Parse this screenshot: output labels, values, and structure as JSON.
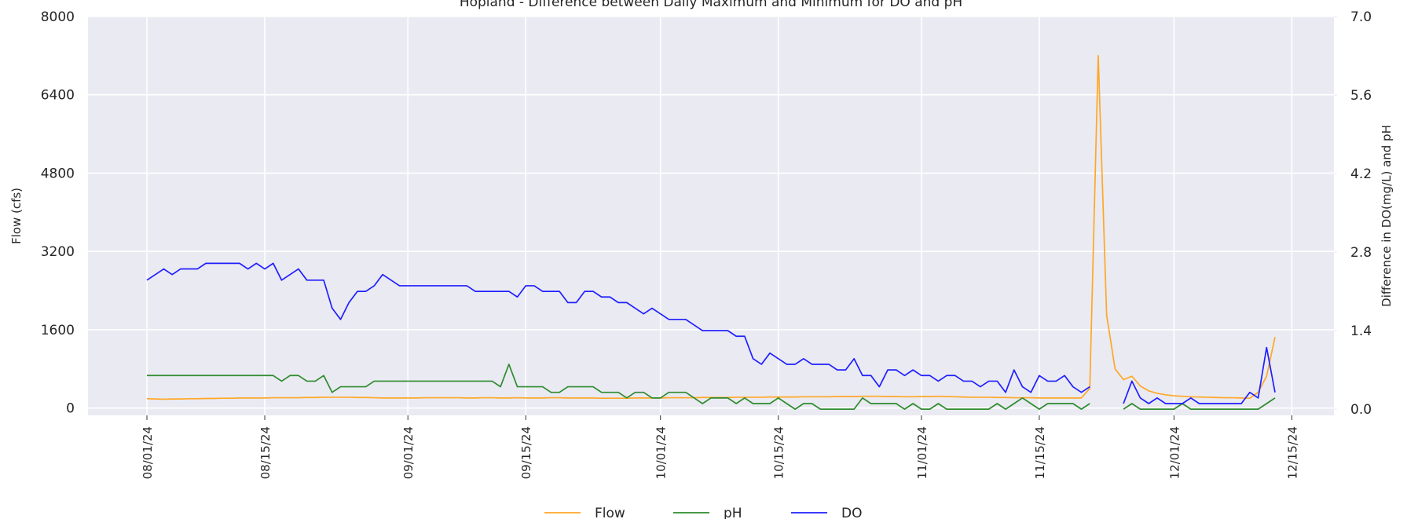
{
  "chart_data": {
    "type": "line",
    "title": "Hopland - Difference between Daily Maximum and Minimum for DO and pH",
    "ylabel": "Flow (cfs)",
    "y2label": "Difference in DO(mg/L) and pH",
    "x": [
      "2024-08-01",
      "2024-08-02",
      "2024-08-03",
      "2024-08-04",
      "2024-08-05",
      "2024-08-06",
      "2024-08-07",
      "2024-08-08",
      "2024-08-09",
      "2024-08-10",
      "2024-08-11",
      "2024-08-12",
      "2024-08-13",
      "2024-08-14",
      "2024-08-15",
      "2024-08-16",
      "2024-08-17",
      "2024-08-18",
      "2024-08-19",
      "2024-08-20",
      "2024-08-21",
      "2024-08-22",
      "2024-08-23",
      "2024-08-24",
      "2024-08-25",
      "2024-08-26",
      "2024-08-27",
      "2024-08-28",
      "2024-08-29",
      "2024-08-30",
      "2024-08-31",
      "2024-09-01",
      "2024-09-02",
      "2024-09-03",
      "2024-09-04",
      "2024-09-05",
      "2024-09-06",
      "2024-09-07",
      "2024-09-08",
      "2024-09-09",
      "2024-09-10",
      "2024-09-11",
      "2024-09-12",
      "2024-09-13",
      "2024-09-14",
      "2024-09-15",
      "2024-09-16",
      "2024-09-17",
      "2024-09-18",
      "2024-09-19",
      "2024-09-20",
      "2024-09-21",
      "2024-09-22",
      "2024-09-23",
      "2024-09-24",
      "2024-09-25",
      "2024-09-26",
      "2024-09-27",
      "2024-09-28",
      "2024-09-29",
      "2024-09-30",
      "2024-10-01",
      "2024-10-02",
      "2024-10-03",
      "2024-10-04",
      "2024-10-05",
      "2024-10-06",
      "2024-10-07",
      "2024-10-08",
      "2024-10-09",
      "2024-10-10",
      "2024-10-11",
      "2024-10-12",
      "2024-10-13",
      "2024-10-14",
      "2024-10-15",
      "2024-10-16",
      "2024-10-17",
      "2024-10-18",
      "2024-10-19",
      "2024-10-20",
      "2024-10-21",
      "2024-10-22",
      "2024-10-23",
      "2024-10-24",
      "2024-10-25",
      "2024-10-26",
      "2024-10-27",
      "2024-10-28",
      "2024-10-29",
      "2024-10-30",
      "2024-10-31",
      "2024-11-01",
      "2024-11-02",
      "2024-11-03",
      "2024-11-04",
      "2024-11-05",
      "2024-11-06",
      "2024-11-07",
      "2024-11-08",
      "2024-11-09",
      "2024-11-10",
      "2024-11-11",
      "2024-11-12",
      "2024-11-13",
      "2024-11-14",
      "2024-11-15",
      "2024-11-16",
      "2024-11-17",
      "2024-11-18",
      "2024-11-19",
      "2024-11-20",
      "2024-11-21",
      "2024-11-22",
      "2024-11-23",
      "2024-11-24",
      "2024-11-25",
      "2024-11-26",
      "2024-11-27",
      "2024-11-28",
      "2024-11-29",
      "2024-11-30",
      "2024-12-01",
      "2024-12-02",
      "2024-12-03",
      "2024-12-04",
      "2024-12-05",
      "2024-12-06",
      "2024-12-07",
      "2024-12-08",
      "2024-12-09",
      "2024-12-10",
      "2024-12-11",
      "2024-12-12",
      "2024-12-13"
    ],
    "series": [
      {
        "name": "Flow",
        "color": "#ffa726",
        "axis": "y",
        "values": [
          190,
          185,
          180,
          185,
          185,
          190,
          190,
          195,
          195,
          200,
          200,
          205,
          205,
          205,
          205,
          210,
          210,
          210,
          210,
          215,
          215,
          220,
          220,
          220,
          220,
          215,
          215,
          210,
          205,
          205,
          205,
          205,
          205,
          210,
          210,
          210,
          210,
          210,
          205,
          205,
          210,
          210,
          205,
          205,
          210,
          205,
          205,
          205,
          210,
          210,
          205,
          205,
          205,
          205,
          200,
          200,
          200,
          200,
          205,
          205,
          205,
          205,
          210,
          210,
          210,
          210,
          215,
          215,
          215,
          215,
          220,
          220,
          220,
          220,
          225,
          225,
          225,
          225,
          230,
          230,
          230,
          230,
          235,
          235,
          235,
          240,
          240,
          240,
          235,
          235,
          230,
          230,
          235,
          235,
          240,
          235,
          230,
          225,
          220,
          220,
          220,
          215,
          215,
          210,
          210,
          210,
          205,
          205,
          205,
          205,
          205,
          205,
          400,
          7200,
          1900,
          800,
          580,
          650,
          450,
          350,
          300,
          270,
          250,
          240,
          230,
          225,
          220,
          215,
          210,
          210,
          205,
          200,
          320,
          650,
          1450
        ]
      },
      {
        "name": "pH",
        "color": "#2e8b2e",
        "axis": "y2",
        "values": [
          0.6,
          0.6,
          0.6,
          0.6,
          0.6,
          0.6,
          0.6,
          0.6,
          0.6,
          0.6,
          0.6,
          0.6,
          0.6,
          0.6,
          0.6,
          0.6,
          0.5,
          0.6,
          0.6,
          0.5,
          0.5,
          0.6,
          0.3,
          0.4,
          0.4,
          0.4,
          0.4,
          0.5,
          0.5,
          0.5,
          0.5,
          0.5,
          0.5,
          0.5,
          0.5,
          0.5,
          0.5,
          0.5,
          0.5,
          0.5,
          0.5,
          0.5,
          0.4,
          0.8,
          0.4,
          0.4,
          0.4,
          0.4,
          0.3,
          0.3,
          0.4,
          0.4,
          0.4,
          0.4,
          0.3,
          0.3,
          0.3,
          0.2,
          0.3,
          0.3,
          0.2,
          0.2,
          0.3,
          0.3,
          0.3,
          0.2,
          0.1,
          0.2,
          0.2,
          0.2,
          0.1,
          0.2,
          0.1,
          0.1,
          0.1,
          0.2,
          0.1,
          0.0,
          0.1,
          0.1,
          0.0,
          0.0,
          0.0,
          0.0,
          0.0,
          0.2,
          0.1,
          0.1,
          0.1,
          0.1,
          0.0,
          0.1,
          0.0,
          0.0,
          0.1,
          0.0,
          0.0,
          0.0,
          0.0,
          0.0,
          0.0,
          0.1,
          0.0,
          0.1,
          0.2,
          0.1,
          0.0,
          0.1,
          0.1,
          0.1,
          0.1,
          0.0,
          0.1,
          null,
          null,
          null,
          0.0,
          0.1,
          0.0,
          0.0,
          0.0,
          0.0,
          0.0,
          0.1,
          0.0,
          0.0,
          0.0,
          0.0,
          0.0,
          0.0,
          0.0,
          0.0,
          0.0,
          0.1,
          0.2
        ]
      },
      {
        "name": "DO",
        "color": "#1f1fff",
        "axis": "y2",
        "values": [
          2.3,
          2.4,
          2.5,
          2.4,
          2.5,
          2.5,
          2.5,
          2.6,
          2.6,
          2.6,
          2.6,
          2.6,
          2.5,
          2.6,
          2.5,
          2.6,
          2.3,
          2.4,
          2.5,
          2.3,
          2.3,
          2.3,
          1.8,
          1.6,
          1.9,
          2.1,
          2.1,
          2.2,
          2.4,
          2.3,
          2.2,
          2.2,
          2.2,
          2.2,
          2.2,
          2.2,
          2.2,
          2.2,
          2.2,
          2.1,
          2.1,
          2.1,
          2.1,
          2.1,
          2.0,
          2.2,
          2.2,
          2.1,
          2.1,
          2.1,
          1.9,
          1.9,
          2.1,
          2.1,
          2.0,
          2.0,
          1.9,
          1.9,
          1.8,
          1.7,
          1.8,
          1.7,
          1.6,
          1.6,
          1.6,
          1.5,
          1.4,
          1.4,
          1.4,
          1.4,
          1.3,
          1.3,
          0.9,
          0.8,
          1.0,
          0.9,
          0.8,
          0.8,
          0.9,
          0.8,
          0.8,
          0.8,
          0.7,
          0.7,
          0.9,
          0.6,
          0.6,
          0.4,
          0.7,
          0.7,
          0.6,
          0.7,
          0.6,
          0.6,
          0.5,
          0.6,
          0.6,
          0.5,
          0.5,
          0.4,
          0.5,
          0.5,
          0.3,
          0.7,
          0.4,
          0.3,
          0.6,
          0.5,
          0.5,
          0.6,
          0.4,
          0.3,
          0.4,
          null,
          null,
          null,
          0.1,
          0.5,
          0.2,
          0.1,
          0.2,
          0.1,
          0.1,
          0.1,
          0.2,
          0.1,
          0.1,
          0.1,
          0.1,
          0.1,
          0.1,
          0.3,
          0.2,
          1.1,
          0.3
        ]
      }
    ],
    "xlim": [
      "2024-07-25",
      "2024-12-20"
    ],
    "xticks": [
      {
        "value": "2024-08-01",
        "label": "08/01/24"
      },
      {
        "value": "2024-08-15",
        "label": "08/15/24"
      },
      {
        "value": "2024-09-01",
        "label": "09/01/24"
      },
      {
        "value": "2024-09-15",
        "label": "09/15/24"
      },
      {
        "value": "2024-10-01",
        "label": "10/01/24"
      },
      {
        "value": "2024-10-15",
        "label": "10/15/24"
      },
      {
        "value": "2024-11-01",
        "label": "11/01/24"
      },
      {
        "value": "2024-11-15",
        "label": "11/15/24"
      },
      {
        "value": "2024-12-01",
        "label": "12/01/24"
      },
      {
        "value": "2024-12-15",
        "label": "12/15/24"
      }
    ],
    "ylim": [
      -150,
      8000
    ],
    "yticks": [
      0,
      1600,
      3200,
      4800,
      6400,
      8000
    ],
    "y2lim": [
      -0.11,
      7.0
    ],
    "y2ticks": [
      {
        "value": 0,
        "label": "0.0"
      },
      1.4,
      2.8,
      4.2,
      5.6,
      {
        "value": 7,
        "label": "7.0"
      }
    ],
    "grid": true,
    "legend": "bottom"
  }
}
